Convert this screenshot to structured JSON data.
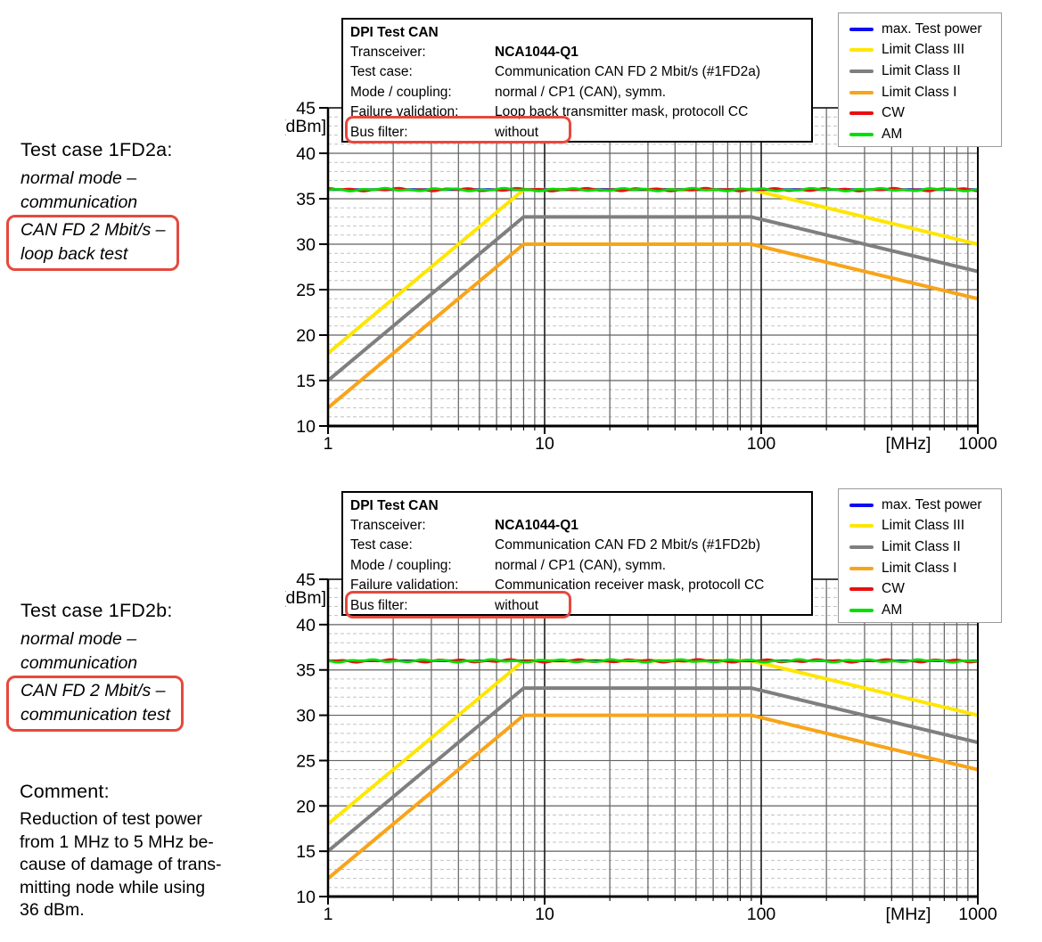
{
  "annotations": {
    "block1": {
      "title": "Test case 1FD2a:",
      "italic_lines": [
        "normal mode –",
        "communication"
      ],
      "boxed_lines": [
        "CAN FD 2 Mbit/s –",
        "loop back test"
      ]
    },
    "block2": {
      "title": "Test case 1FD2b:",
      "italic_lines": [
        "normal mode –",
        "communication"
      ],
      "boxed_lines": [
        "CAN FD 2 Mbit/s –",
        "communication test"
      ]
    },
    "comment": {
      "title": "Comment:",
      "lines": [
        "Reduction of test power",
        "from 1 MHz to 5 MHz be-",
        "cause of damage of trans-",
        "mitting node while using",
        "36 dBm."
      ]
    }
  },
  "colors": {
    "highlight_box": "#e5493d",
    "grid_major": "#606060",
    "grid_minor": "#c2c2c2",
    "axis": "#000000"
  },
  "chart_data": [
    {
      "type": "line",
      "title": "DPI Test CAN",
      "info_box": {
        "title": "DPI Test CAN",
        "rows": [
          {
            "label": "Transceiver:",
            "value": "NCA1044-Q1",
            "bold_value": true,
            "highlighted": false
          },
          {
            "label": "Test case:",
            "value": "Communication CAN FD 2 Mbit/s (#1FD2a)",
            "bold_value": false,
            "highlighted": false
          },
          {
            "label": "Mode / coupling:",
            "value": "normal / CP1 (CAN), symm.",
            "bold_value": false,
            "highlighted": false
          },
          {
            "label": "Failure validation:",
            "value": "Loop back transmitter mask, protocoll CC",
            "bold_value": false,
            "highlighted": false
          },
          {
            "label": "Bus filter:",
            "value": "without",
            "bold_value": false,
            "highlighted": true
          }
        ]
      },
      "x_axis": {
        "scale": "log",
        "min": 1,
        "max": 1000,
        "major_ticks": [
          1,
          10,
          100,
          1000
        ],
        "tick_labels": [
          "1",
          "10",
          "100",
          "1000"
        ],
        "unit_label": "[MHz]"
      },
      "y_axis": {
        "min": 10,
        "max": 45,
        "step": 5,
        "tick_labels": [
          "45",
          "40",
          "35",
          "30",
          "25",
          "20",
          "15",
          "10"
        ],
        "unit_label": "[dBm]"
      },
      "legend": [
        {
          "label": "max. Test power",
          "color": "#0c0cf0"
        },
        {
          "label": "Limit Class III",
          "color": "#ffe600"
        },
        {
          "label": "Limit Class II",
          "color": "#7f7f7f"
        },
        {
          "label": "Limit Class I",
          "color": "#f8a41a"
        },
        {
          "label": "CW",
          "color": "#e81010"
        },
        {
          "label": "AM",
          "color": "#00e000"
        }
      ],
      "series": [
        {
          "name": "Limit Class III",
          "color": "#ffe600",
          "points": [
            [
              1,
              18
            ],
            [
              8,
              36
            ],
            [
              90,
              36
            ],
            [
              1000,
              30
            ]
          ]
        },
        {
          "name": "Limit Class II",
          "color": "#7f7f7f",
          "points": [
            [
              1,
              15
            ],
            [
              8,
              33
            ],
            [
              90,
              33
            ],
            [
              1000,
              27
            ]
          ]
        },
        {
          "name": "Limit Class I",
          "color": "#f8a41a",
          "points": [
            [
              1,
              12
            ],
            [
              8,
              30
            ],
            [
              90,
              30
            ],
            [
              1000,
              24
            ]
          ]
        },
        {
          "name": "max. Test power",
          "color": "#0c0cf0",
          "flat": 36,
          "noise": 0,
          "phase": 0
        },
        {
          "name": "CW",
          "color": "#e81010",
          "flat": 36,
          "noise": 0.17,
          "phase": 0.8
        },
        {
          "name": "AM",
          "color": "#00e000",
          "flat": 36,
          "noise": 0.17,
          "phase": 2.4
        }
      ]
    },
    {
      "type": "line",
      "title": "DPI Test CAN",
      "info_box": {
        "title": "DPI Test CAN",
        "rows": [
          {
            "label": "Transceiver:",
            "value": "NCA1044-Q1",
            "bold_value": true,
            "highlighted": false
          },
          {
            "label": "Test case:",
            "value": "Communication CAN FD 2 Mbit/s (#1FD2b)",
            "bold_value": false,
            "highlighted": false
          },
          {
            "label": "Mode / coupling:",
            "value": "normal / CP1 (CAN), symm.",
            "bold_value": false,
            "highlighted": false
          },
          {
            "label": "Failure validation:",
            "value": "Communication receiver mask, protocoll CC",
            "bold_value": false,
            "highlighted": false
          },
          {
            "label": "Bus filter:",
            "value": "without",
            "bold_value": false,
            "highlighted": true
          }
        ]
      },
      "x_axis": {
        "scale": "log",
        "min": 1,
        "max": 1000,
        "major_ticks": [
          1,
          10,
          100,
          1000
        ],
        "tick_labels": [
          "1",
          "10",
          "100",
          "1000"
        ],
        "unit_label": "[MHz]"
      },
      "y_axis": {
        "min": 10,
        "max": 45,
        "step": 5,
        "tick_labels": [
          "45",
          "40",
          "35",
          "30",
          "25",
          "20",
          "15",
          "10"
        ],
        "unit_label": "[dBm]"
      },
      "legend": [
        {
          "label": "max. Test power",
          "color": "#0c0cf0"
        },
        {
          "label": "Limit Class III",
          "color": "#ffe600"
        },
        {
          "label": "Limit Class II",
          "color": "#7f7f7f"
        },
        {
          "label": "Limit Class I",
          "color": "#f8a41a"
        },
        {
          "label": "CW",
          "color": "#e81010"
        },
        {
          "label": "AM",
          "color": "#00e000"
        }
      ],
      "series": [
        {
          "name": "Limit Class III",
          "color": "#ffe600",
          "points": [
            [
              1,
              18
            ],
            [
              8,
              36
            ],
            [
              90,
              36
            ],
            [
              1000,
              30
            ]
          ]
        },
        {
          "name": "Limit Class II",
          "color": "#7f7f7f",
          "points": [
            [
              1,
              15
            ],
            [
              8,
              33
            ],
            [
              90,
              33
            ],
            [
              1000,
              27
            ]
          ]
        },
        {
          "name": "Limit Class I",
          "color": "#f8a41a",
          "points": [
            [
              1,
              12
            ],
            [
              8,
              30
            ],
            [
              90,
              30
            ],
            [
              1000,
              24
            ]
          ]
        },
        {
          "name": "max. Test power",
          "color": "#0c0cf0",
          "flat": 36,
          "noise": 0,
          "phase": 0
        },
        {
          "name": "CW",
          "color": "#e81010",
          "flat": 36,
          "noise": 0.17,
          "phase": 1.7
        },
        {
          "name": "AM",
          "color": "#00e000",
          "flat": 36,
          "noise": 0.17,
          "phase": 3.9
        }
      ]
    }
  ]
}
